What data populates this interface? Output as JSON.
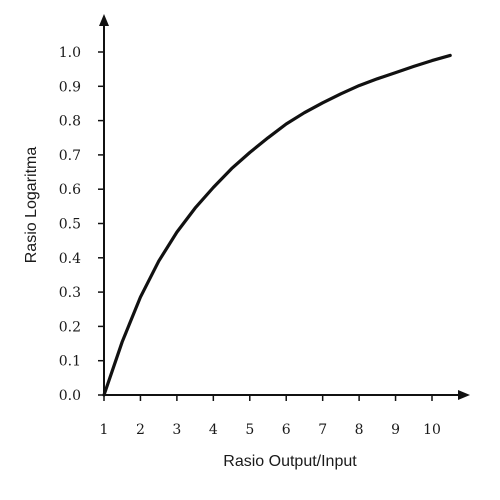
{
  "chart_data": {
    "type": "line",
    "title": "",
    "xlabel": "Rasio Output/Input",
    "ylabel": "Rasio Logaritma",
    "x_ticks": [
      "1",
      "2",
      "3",
      "4",
      "5",
      "6",
      "7",
      "8",
      "9",
      "10"
    ],
    "y_ticks": [
      "0.0",
      "0.1",
      "0.2",
      "0.3",
      "0.4",
      "0.5",
      "0.6",
      "0.7",
      "0.8",
      "0.9",
      "1.0"
    ],
    "xlim": [
      1,
      10.6
    ],
    "ylim": [
      0,
      1.0
    ],
    "grid": false,
    "series": [
      {
        "x": [
          1,
          1.5,
          2,
          2.5,
          3,
          3.5,
          4,
          4.5,
          5,
          5.5,
          6,
          6.5,
          7,
          7.5,
          8,
          8.5,
          9,
          9.5,
          10,
          10.5
        ],
        "y": [
          0.0,
          0.155,
          0.285,
          0.39,
          0.475,
          0.545,
          0.605,
          0.66,
          0.707,
          0.75,
          0.79,
          0.823,
          0.852,
          0.878,
          0.902,
          0.922,
          0.94,
          0.958,
          0.975,
          0.99
        ]
      }
    ],
    "line_color": "#111111",
    "axis_color": "#111111"
  }
}
